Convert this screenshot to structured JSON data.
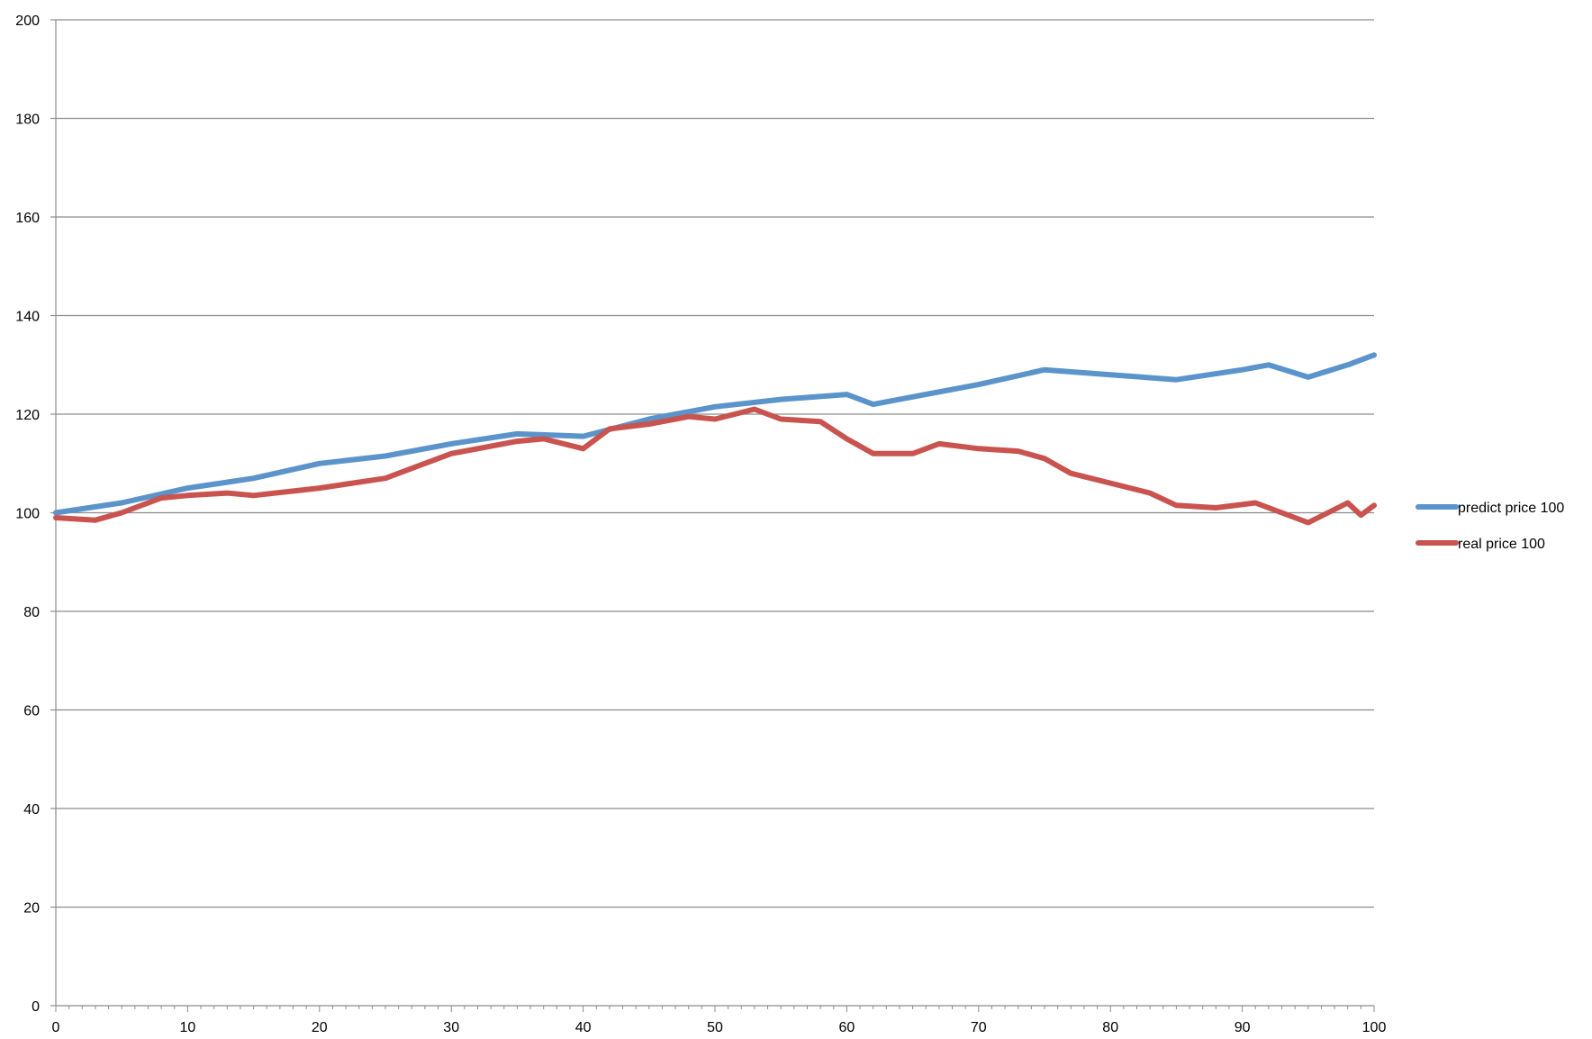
{
  "chart_data": {
    "type": "line",
    "title": "",
    "xlabel": "",
    "ylabel": "",
    "xlim": [
      0,
      100
    ],
    "ylim": [
      0,
      200
    ],
    "x_ticks": [
      0,
      10,
      20,
      30,
      40,
      50,
      60,
      70,
      80,
      90,
      100
    ],
    "y_ticks": [
      0,
      20,
      40,
      60,
      80,
      100,
      120,
      140,
      160,
      180,
      200
    ],
    "grid": "horizontal",
    "legend_position": "right",
    "series": [
      {
        "name": "predict price 100",
        "color": "#5b93cb",
        "x": [
          0,
          5,
          10,
          15,
          20,
          25,
          30,
          35,
          40,
          45,
          50,
          55,
          60,
          62,
          65,
          70,
          75,
          80,
          85,
          90,
          92,
          95,
          98,
          100
        ],
        "values": [
          100,
          102,
          105,
          107,
          110,
          111.5,
          114,
          116,
          115.5,
          119,
          121.5,
          123,
          124,
          122,
          123.5,
          126,
          129,
          128,
          127,
          129,
          130,
          127.5,
          130,
          132
        ]
      },
      {
        "name": "real price 100",
        "color": "#c9534e",
        "x": [
          0,
          3,
          5,
          8,
          10,
          13,
          15,
          20,
          25,
          27,
          30,
          35,
          37,
          40,
          42,
          45,
          48,
          50,
          53,
          55,
          58,
          60,
          62,
          65,
          67,
          70,
          73,
          75,
          77,
          80,
          83,
          85,
          88,
          91,
          93,
          95,
          98,
          99,
          100
        ],
        "values": [
          99,
          98.5,
          100,
          103,
          103.5,
          104,
          103.5,
          105,
          107,
          109,
          112,
          114.5,
          115,
          113,
          117,
          118,
          119.5,
          119,
          121,
          119,
          118.5,
          115,
          112,
          112,
          114,
          113,
          112.5,
          111,
          108,
          106,
          104,
          101.5,
          101,
          102,
          100,
          98,
          102,
          99.5,
          101.5
        ]
      }
    ]
  }
}
